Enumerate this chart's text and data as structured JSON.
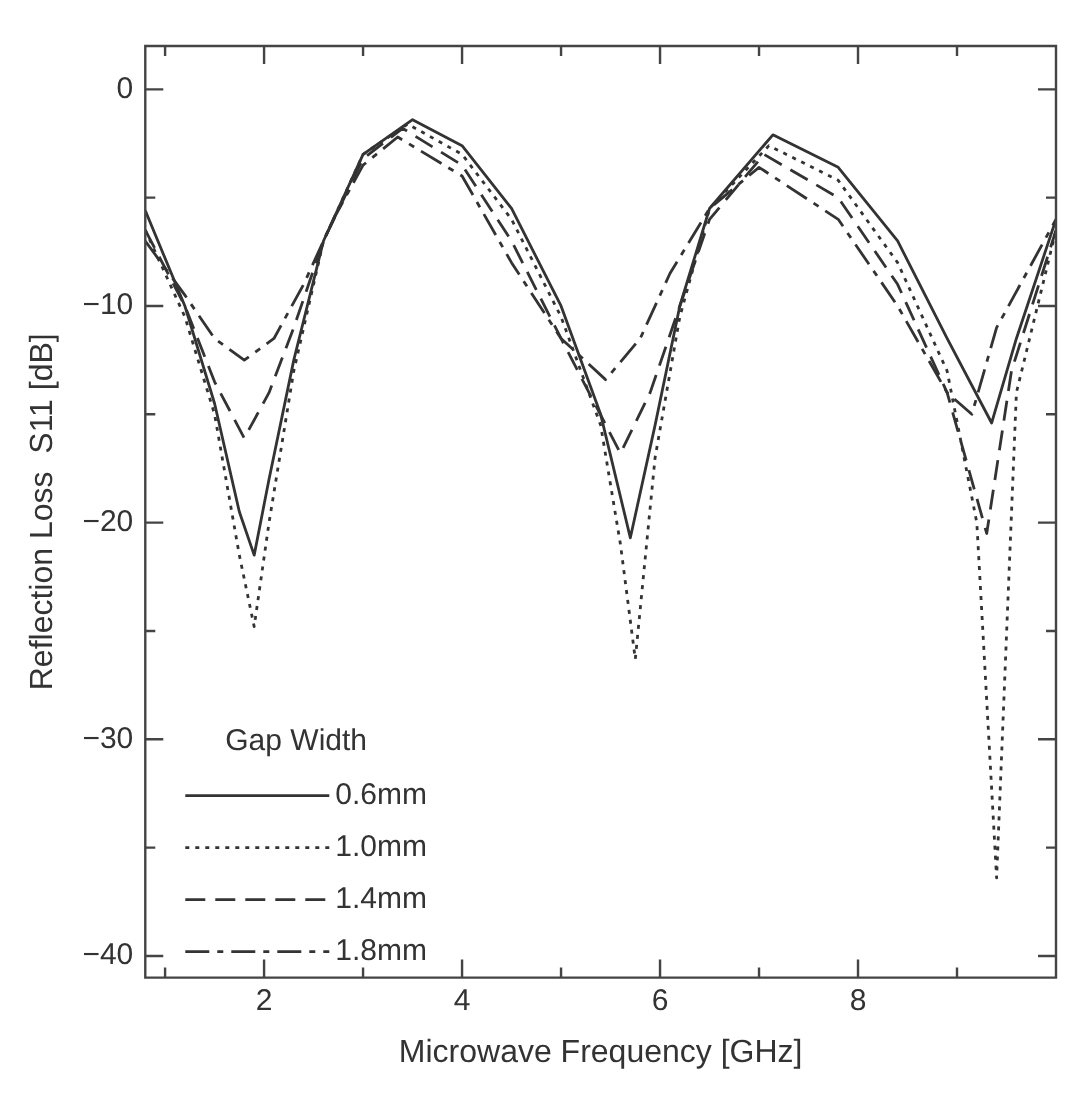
{
  "chart_data": {
    "type": "line",
    "xlabel": "Microwave Frequency [GHz]",
    "ylabel": "Reflection Loss  S11 [dB]",
    "legend_title": "Gap Width",
    "legend": "bottom left",
    "grid": false,
    "marker": "none",
    "xlim": [
      0.8,
      10
    ],
    "xticks": [
      {
        "value": 1,
        "label": null
      },
      2,
      {
        "value": 3,
        "label": null
      },
      4,
      {
        "value": 5,
        "label": null
      },
      6,
      {
        "value": 7,
        "label": null
      },
      8,
      {
        "value": 9,
        "label": null
      }
    ],
    "ylim": [
      -41,
      2
    ],
    "yticks": [
      0,
      {
        "value": -5,
        "label": null
      },
      -10,
      {
        "value": -15,
        "label": null
      },
      -20,
      {
        "value": -25,
        "label": null
      },
      -30,
      {
        "value": -35,
        "label": null
      },
      -40
    ],
    "series": [
      {
        "name": "0.6mm",
        "color": "#333333",
        "line_style": "solid",
        "x": [
          0.8,
          1.2,
          1.5,
          1.75,
          1.9,
          2.05,
          2.3,
          2.6,
          3.0,
          3.5,
          4.0,
          4.5,
          5.0,
          5.4,
          5.7,
          5.95,
          6.2,
          6.5,
          7.14,
          7.8,
          8.4,
          8.9,
          9.35,
          9.6,
          10
        ],
        "values": [
          -5.6,
          -10,
          -14.5,
          -19.5,
          -21.5,
          -18,
          -12.5,
          -7,
          -3,
          -1.4,
          -2.6,
          -5.5,
          -10,
          -15,
          -20.7,
          -15.5,
          -10,
          -5.5,
          -2.1,
          -3.6,
          -7,
          -11.5,
          -15.4,
          -11.5,
          -6
        ]
      },
      {
        "name": "1.0mm",
        "color": "#333333",
        "line_style": "dotted",
        "x": [
          0.8,
          1.2,
          1.5,
          1.75,
          1.9,
          2.05,
          2.3,
          2.6,
          3.0,
          3.45,
          4.0,
          4.5,
          5.0,
          5.4,
          5.6,
          5.75,
          5.95,
          6.2,
          6.5,
          7.1,
          7.8,
          8.4,
          8.9,
          9.2,
          9.4,
          9.6,
          10
        ],
        "values": [
          -6.5,
          -10.5,
          -15,
          -21.5,
          -24.8,
          -20,
          -13,
          -7,
          -3,
          -1.6,
          -3,
          -6,
          -10.5,
          -15.5,
          -21,
          -26.3,
          -17,
          -10.5,
          -5.5,
          -2.6,
          -4.2,
          -8,
          -13,
          -20,
          -36.4,
          -14,
          -6.5
        ]
      },
      {
        "name": "1.4mm",
        "color": "#333333",
        "line_style": "dashed",
        "x": [
          0.8,
          1.2,
          1.5,
          1.8,
          2.05,
          2.3,
          2.6,
          3.0,
          3.4,
          4.0,
          4.5,
          5.0,
          5.6,
          5.9,
          6.2,
          6.5,
          7.05,
          7.8,
          8.4,
          8.9,
          9.3,
          9.55,
          10
        ],
        "values": [
          -6.5,
          -10,
          -13.5,
          -16.1,
          -14,
          -11,
          -7,
          -3.2,
          -1.8,
          -3.5,
          -7,
          -11.5,
          -16.8,
          -14,
          -10,
          -6,
          -3,
          -5,
          -9,
          -14,
          -20.5,
          -13,
          -6.5
        ]
      },
      {
        "name": "1.8mm",
        "color": "#333333",
        "line_style": "dashdot",
        "x": [
          0.8,
          1.2,
          1.5,
          1.8,
          2.1,
          2.4,
          2.7,
          3.0,
          3.35,
          4.0,
          4.5,
          5.0,
          5.45,
          5.8,
          6.1,
          6.5,
          7.0,
          7.8,
          8.4,
          8.9,
          9.15,
          9.4,
          10
        ],
        "values": [
          -7,
          -9.5,
          -11.5,
          -12.5,
          -11.5,
          -9,
          -6,
          -3.5,
          -2.2,
          -4,
          -8,
          -11.5,
          -13.4,
          -11.5,
          -8.5,
          -5.5,
          -3.6,
          -6,
          -10,
          -14,
          -15,
          -11,
          -6
        ]
      }
    ]
  }
}
